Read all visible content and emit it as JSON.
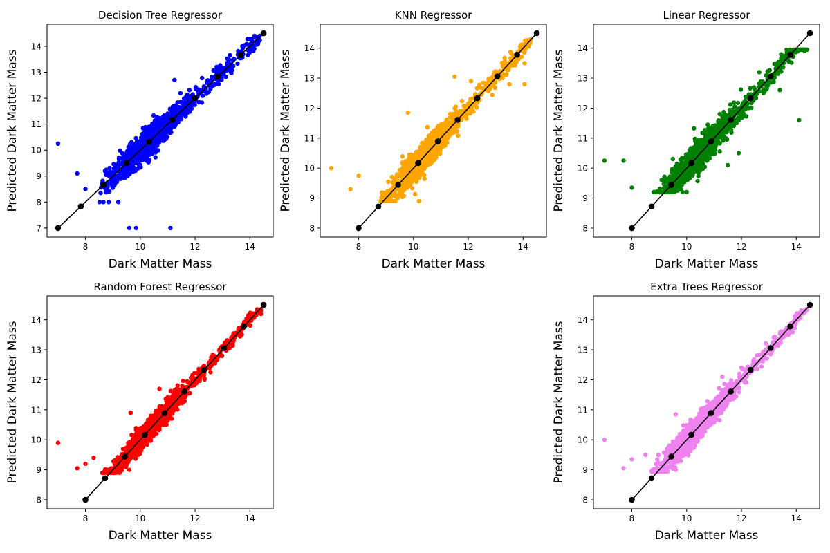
{
  "figure": {
    "background": "#ffffff"
  },
  "chart_data": [
    {
      "type": "scatter",
      "title": "Decision Tree Regressor",
      "xlabel": "Dark Matter Mass",
      "ylabel": "Predicted Dark Matter Mass",
      "xlim": [
        6.6,
        14.85
      ],
      "ylim": [
        6.65,
        14.85
      ],
      "xticks": [
        8,
        10,
        12,
        14
      ],
      "yticks": [
        7,
        8,
        9,
        10,
        11,
        12,
        13,
        14
      ],
      "grid": false,
      "color": "#0000ff",
      "scatter_cloud": {
        "x_range": [
          8.5,
          14.4
        ],
        "y_range": [
          8.0,
          14.4
        ],
        "n_points": 1400,
        "spread": 0.32,
        "dense_center": 10.4
      },
      "outliers": [
        [
          7.0,
          10.25
        ],
        [
          7.7,
          9.1
        ],
        [
          8.0,
          8.5
        ],
        [
          8.85,
          8.0
        ],
        [
          9.2,
          8.0
        ],
        [
          9.6,
          7.0
        ],
        [
          9.85,
          7.0
        ],
        [
          11.1,
          7.0
        ],
        [
          11.25,
          12.7
        ],
        [
          14.3,
          14.3
        ],
        [
          14.3,
          14.1
        ]
      ],
      "line": {
        "color": "#000000",
        "x": [
          7.0,
          7.83,
          8.67,
          9.5,
          10.33,
          11.17,
          12.0,
          12.83,
          13.67,
          14.5
        ],
        "y": [
          7.0,
          7.83,
          8.67,
          9.5,
          10.33,
          11.17,
          12.0,
          12.83,
          13.67,
          14.5
        ]
      }
    },
    {
      "type": "scatter",
      "title": "KNN Regressor",
      "xlabel": "Dark Matter Mass",
      "ylabel": "Predicted Dark Matter Mass",
      "xlim": [
        6.6,
        14.85
      ],
      "ylim": [
        7.7,
        14.8
      ],
      "xticks": [
        8,
        10,
        12,
        14
      ],
      "yticks": [
        8,
        9,
        10,
        11,
        12,
        13,
        14
      ],
      "grid": false,
      "color": "#ffa500",
      "scatter_cloud": {
        "x_range": [
          8.8,
          14.3
        ],
        "y_range": [
          8.9,
          14.3
        ],
        "n_points": 1400,
        "spread": 0.27,
        "dense_center": 10.4
      },
      "outliers": [
        [
          7.0,
          10.0
        ],
        [
          7.7,
          9.3
        ],
        [
          8.0,
          9.75
        ],
        [
          9.8,
          11.85
        ],
        [
          11.5,
          13.05
        ],
        [
          14.05,
          12.8
        ],
        [
          14.05,
          13.5
        ],
        [
          13.5,
          12.8
        ],
        [
          10.2,
          8.9
        ],
        [
          12.1,
          12.9
        ]
      ],
      "line": {
        "color": "#000000",
        "x": [
          8.0,
          8.72,
          9.44,
          10.17,
          10.89,
          11.61,
          12.33,
          13.06,
          13.78,
          14.5
        ],
        "y": [
          8.0,
          8.72,
          9.44,
          10.17,
          10.89,
          11.61,
          12.33,
          13.06,
          13.78,
          14.5
        ]
      }
    },
    {
      "type": "scatter",
      "title": "Linear Regressor",
      "xlabel": "Dark Matter Mass",
      "ylabel": "Predicted Dark Matter Mass",
      "xlim": [
        6.6,
        14.85
      ],
      "ylim": [
        7.7,
        14.8
      ],
      "xticks": [
        8,
        10,
        12,
        14
      ],
      "yticks": [
        8,
        9,
        10,
        11,
        12,
        13,
        14
      ],
      "grid": false,
      "color": "#008000",
      "scatter_cloud": {
        "x_range": [
          8.8,
          14.4
        ],
        "y_range": [
          9.2,
          13.95
        ],
        "n_points": 1400,
        "spread": 0.28,
        "dense_center": 10.4
      },
      "outliers": [
        [
          7.0,
          10.25
        ],
        [
          7.7,
          10.25
        ],
        [
          8.0,
          9.35
        ],
        [
          14.1,
          11.6
        ],
        [
          14.3,
          13.9
        ],
        [
          13.4,
          12.6
        ],
        [
          12.4,
          12.4
        ],
        [
          11.5,
          10.1
        ],
        [
          11.9,
          10.5
        ]
      ],
      "line": {
        "color": "#000000",
        "x": [
          8.0,
          8.72,
          9.44,
          10.17,
          10.89,
          11.61,
          12.33,
          13.06,
          13.78,
          14.5
        ],
        "y": [
          8.0,
          8.72,
          9.44,
          10.17,
          10.89,
          11.61,
          12.33,
          13.06,
          13.78,
          14.5
        ]
      }
    },
    {
      "type": "scatter",
      "title": "Random Forest Regressor",
      "xlabel": "Dark Matter Mass",
      "ylabel": "Predicted Dark Matter Mass",
      "xlim": [
        6.6,
        14.85
      ],
      "ylim": [
        7.7,
        14.8
      ],
      "xticks": [
        8,
        10,
        12,
        14
      ],
      "yticks": [
        8,
        9,
        10,
        11,
        12,
        13,
        14
      ],
      "grid": false,
      "color": "#ff0000",
      "scatter_cloud": {
        "x_range": [
          8.6,
          14.4
        ],
        "y_range": [
          8.9,
          14.35
        ],
        "n_points": 1400,
        "spread": 0.2,
        "dense_center": 10.4
      },
      "outliers": [
        [
          7.0,
          9.9
        ],
        [
          7.7,
          9.05
        ],
        [
          8.0,
          9.2
        ],
        [
          8.3,
          9.4
        ],
        [
          9.6,
          9.0
        ],
        [
          9.65,
          10.9
        ],
        [
          10.7,
          11.7
        ],
        [
          14.4,
          14.2
        ],
        [
          14.4,
          14.3
        ]
      ],
      "line": {
        "color": "#000000",
        "x": [
          8.0,
          8.72,
          9.44,
          10.17,
          10.89,
          11.61,
          12.33,
          13.06,
          13.78,
          14.5
        ],
        "y": [
          8.0,
          8.72,
          9.44,
          10.17,
          10.89,
          11.61,
          12.33,
          13.06,
          13.78,
          14.5
        ]
      }
    },
    {
      "type": "scatter",
      "title": "Extra Trees Regressor",
      "xlabel": "Dark Matter Mass",
      "ylabel": "Predicted Dark Matter Mass",
      "xlim": [
        6.6,
        14.85
      ],
      "ylim": [
        7.7,
        14.8
      ],
      "xticks": [
        8,
        10,
        12,
        14
      ],
      "yticks": [
        8,
        9,
        10,
        11,
        12,
        13,
        14
      ],
      "grid": false,
      "color": "#ee82ee",
      "scatter_cloud": {
        "x_range": [
          8.7,
          14.4
        ],
        "y_range": [
          8.95,
          14.35
        ],
        "n_points": 1400,
        "spread": 0.22,
        "dense_center": 10.4
      },
      "outliers": [
        [
          7.0,
          10.0
        ],
        [
          7.7,
          9.05
        ],
        [
          8.0,
          9.35
        ],
        [
          8.5,
          9.5
        ],
        [
          9.6,
          9.0
        ],
        [
          9.6,
          10.85
        ],
        [
          11.3,
          12.1
        ],
        [
          11.3,
          11.65
        ],
        [
          14.4,
          14.35
        ]
      ],
      "line": {
        "color": "#000000",
        "x": [
          8.0,
          8.72,
          9.44,
          10.17,
          10.89,
          11.61,
          12.33,
          13.06,
          13.78,
          14.5
        ],
        "y": [
          8.0,
          8.72,
          9.44,
          10.17,
          10.89,
          11.61,
          12.33,
          13.06,
          13.78,
          14.5
        ]
      }
    }
  ]
}
